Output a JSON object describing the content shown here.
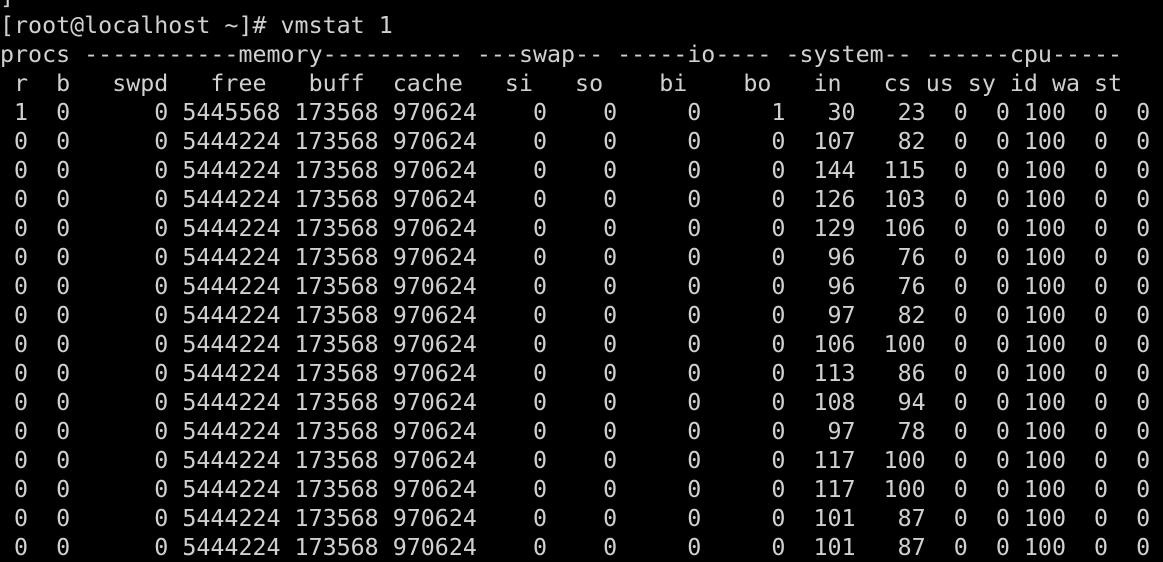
{
  "terminal": {
    "colors": {
      "background": "#000000",
      "foreground": "#d0d0d0"
    },
    "clipped_top_fragment": "]",
    "prompt": "[root@localhost ~]#",
    "command": "vmstat 1",
    "group_header_line": "procs -----------memory---------- ---swap-- -----io---- -system-- ------cpu-----",
    "columns": [
      "r",
      "b",
      "swpd",
      "free",
      "buff",
      "cache",
      "si",
      "so",
      "bi",
      "bo",
      "in",
      "cs",
      "us",
      "sy",
      "id",
      "wa",
      "st"
    ],
    "rows": [
      [
        1,
        0,
        0,
        5445568,
        173568,
        970624,
        0,
        0,
        0,
        1,
        30,
        23,
        0,
        0,
        100,
        0,
        0
      ],
      [
        0,
        0,
        0,
        5444224,
        173568,
        970624,
        0,
        0,
        0,
        0,
        107,
        82,
        0,
        0,
        100,
        0,
        0
      ],
      [
        0,
        0,
        0,
        5444224,
        173568,
        970624,
        0,
        0,
        0,
        0,
        144,
        115,
        0,
        0,
        100,
        0,
        0
      ],
      [
        0,
        0,
        0,
        5444224,
        173568,
        970624,
        0,
        0,
        0,
        0,
        126,
        103,
        0,
        0,
        100,
        0,
        0
      ],
      [
        0,
        0,
        0,
        5444224,
        173568,
        970624,
        0,
        0,
        0,
        0,
        129,
        106,
        0,
        0,
        100,
        0,
        0
      ],
      [
        0,
        0,
        0,
        5444224,
        173568,
        970624,
        0,
        0,
        0,
        0,
        96,
        76,
        0,
        0,
        100,
        0,
        0
      ],
      [
        0,
        0,
        0,
        5444224,
        173568,
        970624,
        0,
        0,
        0,
        0,
        96,
        76,
        0,
        0,
        100,
        0,
        0
      ],
      [
        0,
        0,
        0,
        5444224,
        173568,
        970624,
        0,
        0,
        0,
        0,
        97,
        82,
        0,
        0,
        100,
        0,
        0
      ],
      [
        0,
        0,
        0,
        5444224,
        173568,
        970624,
        0,
        0,
        0,
        0,
        106,
        100,
        0,
        0,
        100,
        0,
        0
      ],
      [
        0,
        0,
        0,
        5444224,
        173568,
        970624,
        0,
        0,
        0,
        0,
        113,
        86,
        0,
        0,
        100,
        0,
        0
      ],
      [
        0,
        0,
        0,
        5444224,
        173568,
        970624,
        0,
        0,
        0,
        0,
        108,
        94,
        0,
        0,
        100,
        0,
        0
      ],
      [
        0,
        0,
        0,
        5444224,
        173568,
        970624,
        0,
        0,
        0,
        0,
        97,
        78,
        0,
        0,
        100,
        0,
        0
      ],
      [
        0,
        0,
        0,
        5444224,
        173568,
        970624,
        0,
        0,
        0,
        0,
        117,
        100,
        0,
        0,
        100,
        0,
        0
      ],
      [
        0,
        0,
        0,
        5444224,
        173568,
        970624,
        0,
        0,
        0,
        0,
        117,
        100,
        0,
        0,
        100,
        0,
        0
      ],
      [
        0,
        0,
        0,
        5444224,
        173568,
        970624,
        0,
        0,
        0,
        0,
        101,
        87,
        0,
        0,
        100,
        0,
        0
      ],
      [
        0,
        0,
        0,
        5444224,
        173568,
        970624,
        0,
        0,
        0,
        0,
        101,
        87,
        0,
        0,
        100,
        0,
        0
      ]
    ]
  }
}
